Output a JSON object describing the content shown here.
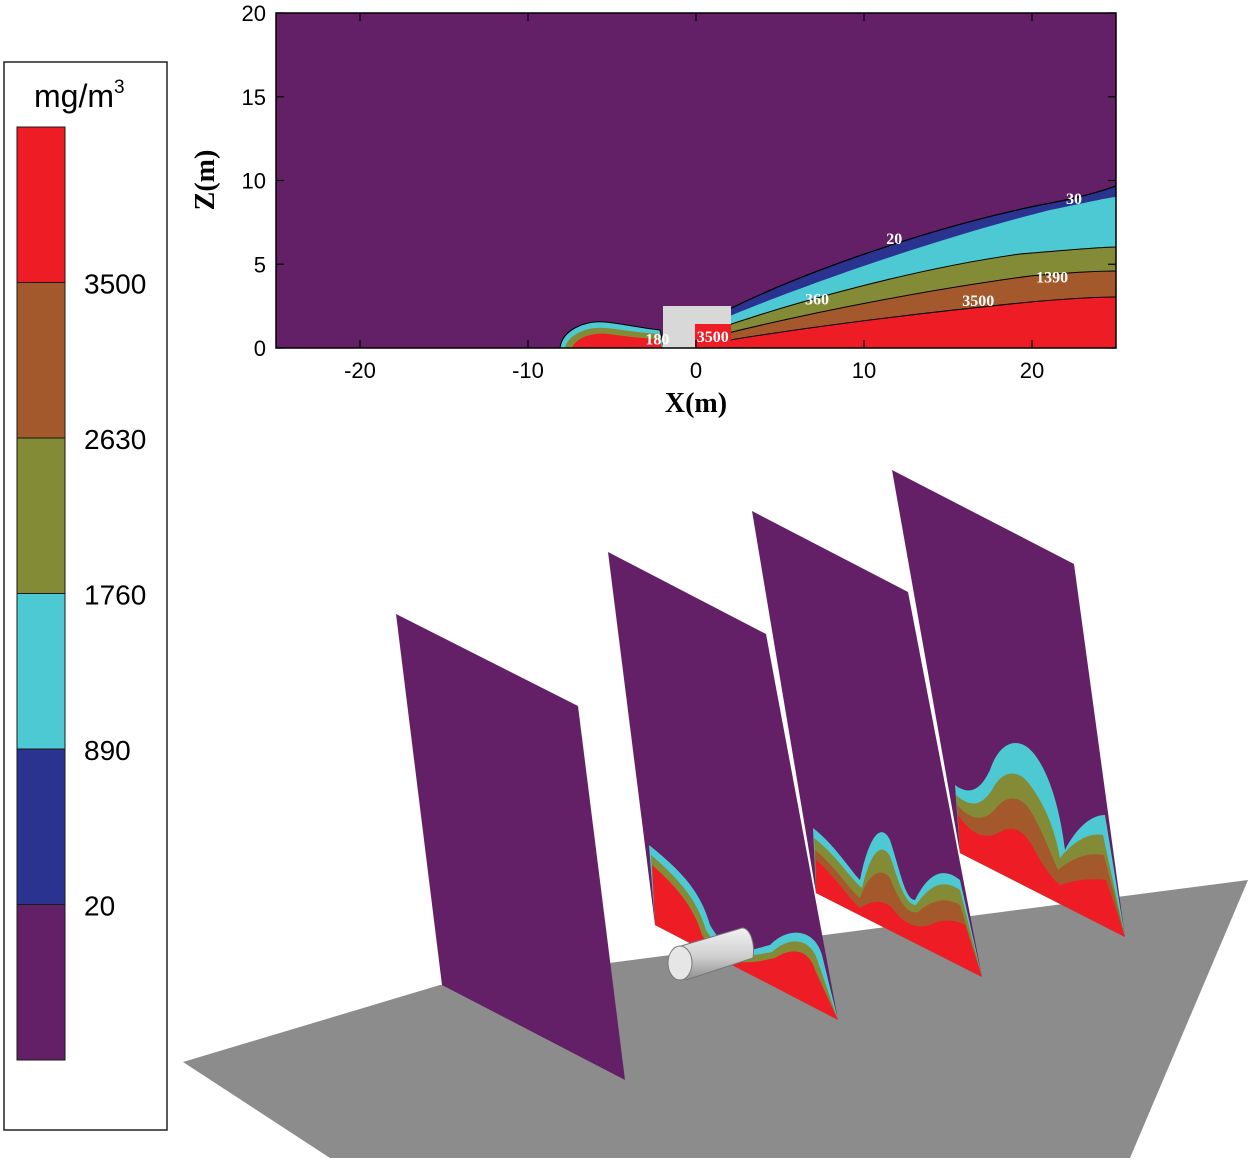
{
  "legend": {
    "unit_base": "mg/m",
    "unit_exp": "3",
    "ticks": [
      "3500",
      "2630",
      "1760",
      "890",
      "20"
    ],
    "bands": [
      {
        "name": "band-above-3500",
        "color": "#ee1c25"
      },
      {
        "name": "band-2630-3500",
        "color": "#a3592b"
      },
      {
        "name": "band-1760-2630",
        "color": "#848b36"
      },
      {
        "name": "band-890-1760",
        "color": "#4dc9d3"
      },
      {
        "name": "band-20-890",
        "color": "#2b3391"
      },
      {
        "name": "band-below-20",
        "color": "#632066"
      }
    ]
  },
  "chart_data": {
    "type": "contour",
    "xlabel": "X(m)",
    "ylabel": "Z(m)",
    "xlim": [
      -25,
      25
    ],
    "ylim": [
      0,
      20
    ],
    "xticks": [
      -20,
      -10,
      0,
      10,
      20
    ],
    "yticks": [
      0,
      5,
      10,
      15,
      20
    ],
    "background_color": "#632066",
    "contour_labels": [
      {
        "text": "30",
        "x": 22.5,
        "z": 8.6
      },
      {
        "text": "20",
        "x": 11.8,
        "z": 6.2
      },
      {
        "text": "1390",
        "x": 21.2,
        "z": 3.9
      },
      {
        "text": "360",
        "x": 7.2,
        "z": 2.6
      },
      {
        "text": "3500",
        "x": 16.8,
        "z": 2.5
      },
      {
        "text": "3500",
        "x": 1.0,
        "z": 0.35
      },
      {
        "text": "180",
        "x": -2.3,
        "z": 0.2
      }
    ]
  },
  "scene_3d": {
    "slice_color": "#632066",
    "ground_color": "#8c8c8c",
    "cylinder_color": "#cfcfcf"
  }
}
